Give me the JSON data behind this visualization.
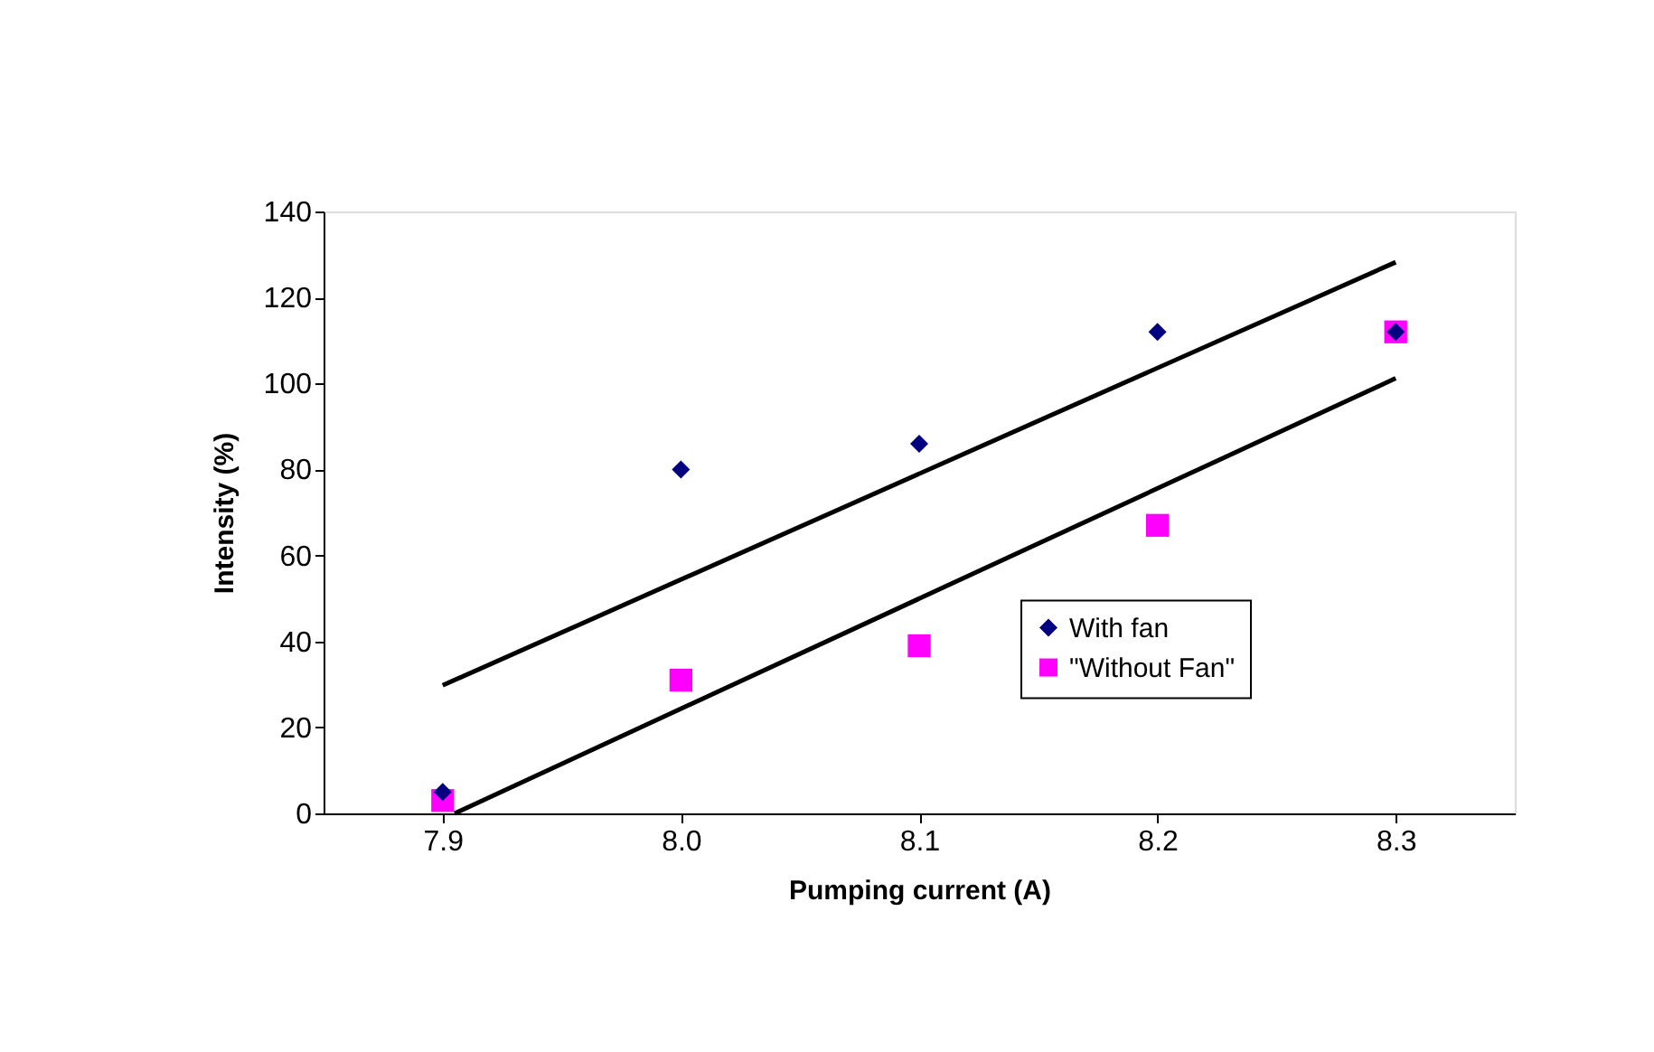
{
  "chart_data": {
    "type": "scatter",
    "xlabel": "Pumping current (A)",
    "ylabel": "Intensity (%)",
    "xlim": [
      7.85,
      8.35
    ],
    "xticks": [
      7.9,
      {
        "value": 8.0,
        "label": "8.0"
      },
      8.1,
      8.2,
      8.3
    ],
    "ylim": [
      0,
      140
    ],
    "yticks": [
      0,
      20,
      40,
      60,
      80,
      100,
      120,
      140
    ],
    "grid": false,
    "legend": "bottom right",
    "series": [
      {
        "name": "With fan",
        "type": "scatter",
        "marker": "diamond",
        "color": "#000080",
        "x": [
          7.9,
          8.0,
          8.1,
          8.2,
          8.3
        ],
        "values": [
          5,
          80,
          86,
          112,
          112
        ]
      },
      {
        "name": "\"Without Fan\"",
        "type": "scatter",
        "marker": "square",
        "color": "#ff00ff",
        "x": [
          7.9,
          8.0,
          8.1,
          8.2,
          8.3
        ],
        "values": [
          3,
          31,
          39,
          67,
          112
        ]
      },
      {
        "type": "line",
        "color": "#000000",
        "line_style": "solid",
        "marker": "none",
        "x": [
          7.9,
          8.3
        ],
        "values": [
          29.8,
          128.2
        ]
      },
      {
        "type": "line",
        "color": "#000000",
        "line_style": "solid",
        "marker": "none",
        "x": [
          7.905,
          8.3
        ],
        "values": [
          0,
          101.2
        ]
      }
    ]
  }
}
